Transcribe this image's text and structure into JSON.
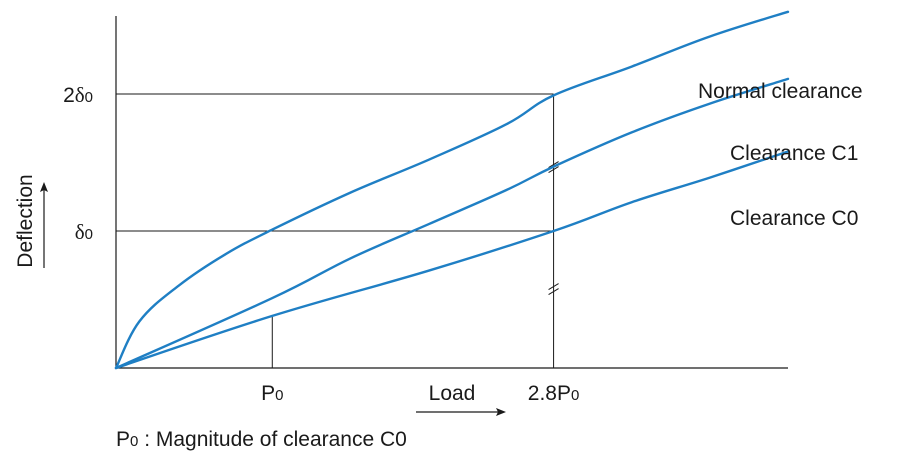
{
  "chart_data": {
    "type": "line",
    "title": "",
    "xlabel": "Load",
    "ylabel": "Deflection",
    "x_ticks": [
      {
        "value": 1,
        "main": "P",
        "sub": "0"
      },
      {
        "value": 2.8,
        "main": "2.8P",
        "sub": "0"
      }
    ],
    "y_ticks": [
      {
        "value": 1,
        "prefix": "",
        "greek": "δ",
        "sub": "0"
      },
      {
        "value": 2,
        "prefix": "2",
        "greek": "δ",
        "sub": "0"
      }
    ],
    "xlim": [
      0,
      4.3
    ],
    "ylim": [
      0,
      2.6
    ],
    "grid": false,
    "reference_lines": {
      "horizontal": [
        1,
        2
      ],
      "vertical": [
        1,
        2.8
      ],
      "p0_drop_to": 0.38
    },
    "series": [
      {
        "name": "Normal clearance",
        "x": [
          0,
          0.15,
          0.4,
          0.7,
          1,
          1.5,
          2,
          2.5,
          2.8,
          3.3,
          3.8,
          4.3
        ],
        "y": [
          0,
          0.34,
          0.6,
          0.83,
          1.01,
          1.28,
          1.52,
          1.78,
          1.99,
          2.2,
          2.42,
          2.6
        ]
      },
      {
        "name": "Clearance C1",
        "x": [
          0,
          1,
          1.5,
          2,
          2.5,
          2.8,
          3.3,
          3.8,
          4.3
        ],
        "y": [
          0,
          0.51,
          0.8,
          1.05,
          1.3,
          1.47,
          1.72,
          1.93,
          2.11
        ]
      },
      {
        "name": "Clearance C0",
        "x": [
          0,
          1,
          2,
          2.8,
          3.3,
          3.8,
          4.3
        ],
        "y": [
          0,
          0.38,
          0.71,
          1.0,
          1.21,
          1.39,
          1.58
        ]
      }
    ],
    "annotations": {
      "footnote": {
        "main": "P",
        "sub": "0",
        "text": " : Magnitude of clearance C0"
      },
      "break_marks_on_2_8P0": [
        1.47,
        0.58
      ]
    }
  },
  "colors": {
    "curve": "#1f7fc4",
    "axis": "#1a1a1a"
  }
}
